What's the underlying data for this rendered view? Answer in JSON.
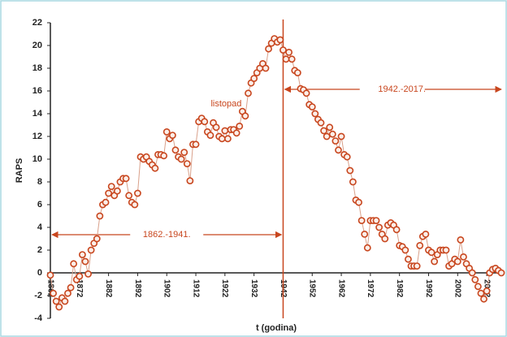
{
  "chart_data": {
    "type": "line",
    "title_y": "RAPS",
    "title_x": "t (godina)",
    "annotations": [
      "listopad",
      "1862.-1941.",
      "1942.-2017."
    ],
    "vline": 1942,
    "x": [
      1862,
      1863,
      1864,
      1865,
      1866,
      1867,
      1868,
      1869,
      1870,
      1871,
      1872,
      1873,
      1874,
      1875,
      1876,
      1877,
      1878,
      1879,
      1880,
      1881,
      1882,
      1883,
      1884,
      1885,
      1886,
      1887,
      1888,
      1889,
      1890,
      1891,
      1892,
      1893,
      1894,
      1895,
      1896,
      1897,
      1898,
      1899,
      1900,
      1901,
      1902,
      1903,
      1904,
      1905,
      1906,
      1907,
      1908,
      1909,
      1910,
      1911,
      1912,
      1913,
      1914,
      1915,
      1916,
      1917,
      1918,
      1919,
      1920,
      1921,
      1922,
      1923,
      1924,
      1925,
      1926,
      1927,
      1928,
      1929,
      1930,
      1931,
      1932,
      1933,
      1934,
      1935,
      1936,
      1937,
      1938,
      1939,
      1940,
      1941,
      1942,
      1943,
      1944,
      1945,
      1946,
      1947,
      1948,
      1949,
      1950,
      1951,
      1952,
      1953,
      1954,
      1955,
      1956,
      1957,
      1958,
      1959,
      1960,
      1961,
      1962,
      1963,
      1964,
      1965,
      1966,
      1967,
      1968,
      1969,
      1970,
      1971,
      1972,
      1973,
      1974,
      1975,
      1976,
      1977,
      1978,
      1979,
      1980,
      1981,
      1982,
      1983,
      1984,
      1985,
      1986,
      1987,
      1988,
      1989,
      1990,
      1991,
      1992,
      1993,
      1994,
      1995,
      1996,
      1997,
      1998,
      1999,
      2000,
      2001,
      2002,
      2003,
      2004,
      2005,
      2006,
      2007,
      2008,
      2009,
      2010,
      2011,
      2012,
      2013,
      2014,
      2015,
      2016,
      2017
    ],
    "series": [
      {
        "color": "#c8461e",
        "values": [
          -0.2,
          -1.8,
          -2.5,
          -3.0,
          -2.2,
          -2.5,
          -1.8,
          -1.3,
          0.8,
          -0.6,
          -0.3,
          1.6,
          1.0,
          -0.1,
          2.0,
          2.6,
          3.0,
          5.0,
          6.0,
          6.2,
          7.0,
          7.6,
          6.8,
          7.2,
          8.0,
          8.3,
          8.3,
          6.8,
          6.2,
          6.0,
          7.0,
          10.2,
          10.0,
          10.2,
          9.8,
          9.5,
          9.2,
          10.4,
          10.4,
          10.3,
          12.4,
          11.8,
          12.1,
          10.8,
          10.2,
          10.0,
          10.6,
          9.6,
          8.1,
          11.3,
          11.3,
          13.3,
          13.6,
          13.3,
          12.4,
          12.1,
          13.2,
          12.8,
          12.0,
          11.8,
          12.5,
          11.8,
          12.6,
          12.6,
          12.3,
          12.9,
          14.2,
          13.8,
          15.8,
          16.7,
          17.1,
          17.6,
          18.0,
          18.4,
          18.0,
          19.7,
          20.2,
          20.6,
          20.3,
          20.5,
          19.6,
          18.8,
          19.4,
          18.8,
          17.8,
          17.6,
          16.2,
          16.1,
          15.8,
          14.8,
          14.6,
          14.0,
          13.5,
          13.2,
          12.5,
          12.0,
          12.8,
          12.2,
          11.6,
          10.8,
          12.0,
          10.4,
          10.2,
          9.0,
          8.0,
          6.4,
          6.2,
          4.6,
          3.4,
          2.2,
          4.6,
          4.6,
          4.6,
          4.0,
          3.4,
          3.0,
          4.2,
          4.4,
          4.2,
          3.8,
          2.4,
          2.3,
          2.0,
          1.2,
          0.6,
          0.6,
          0.6,
          2.4,
          3.2,
          3.4,
          2.0,
          1.8,
          1.0,
          1.6,
          2.0,
          2.0,
          2.0,
          0.6,
          0.8,
          1.2,
          1.0,
          2.9,
          1.4,
          0.8,
          0.4,
          0.0,
          -0.6,
          -1.2,
          -1.8,
          -2.3,
          -1.6,
          0.0,
          0.3,
          0.4,
          0.2,
          0.0
        ]
      }
    ],
    "xlim": [
      1862,
      2017
    ],
    "xticks": [
      1862,
      1872,
      1882,
      1892,
      1902,
      1912,
      1922,
      1932,
      1942,
      1952,
      1962,
      1972,
      1982,
      1992,
      2002,
      2012
    ],
    "ylim": [
      -4,
      22
    ],
    "yticks": [
      -4,
      -2,
      0,
      2,
      4,
      6,
      8,
      10,
      12,
      14,
      16,
      18,
      20,
      22
    ]
  }
}
